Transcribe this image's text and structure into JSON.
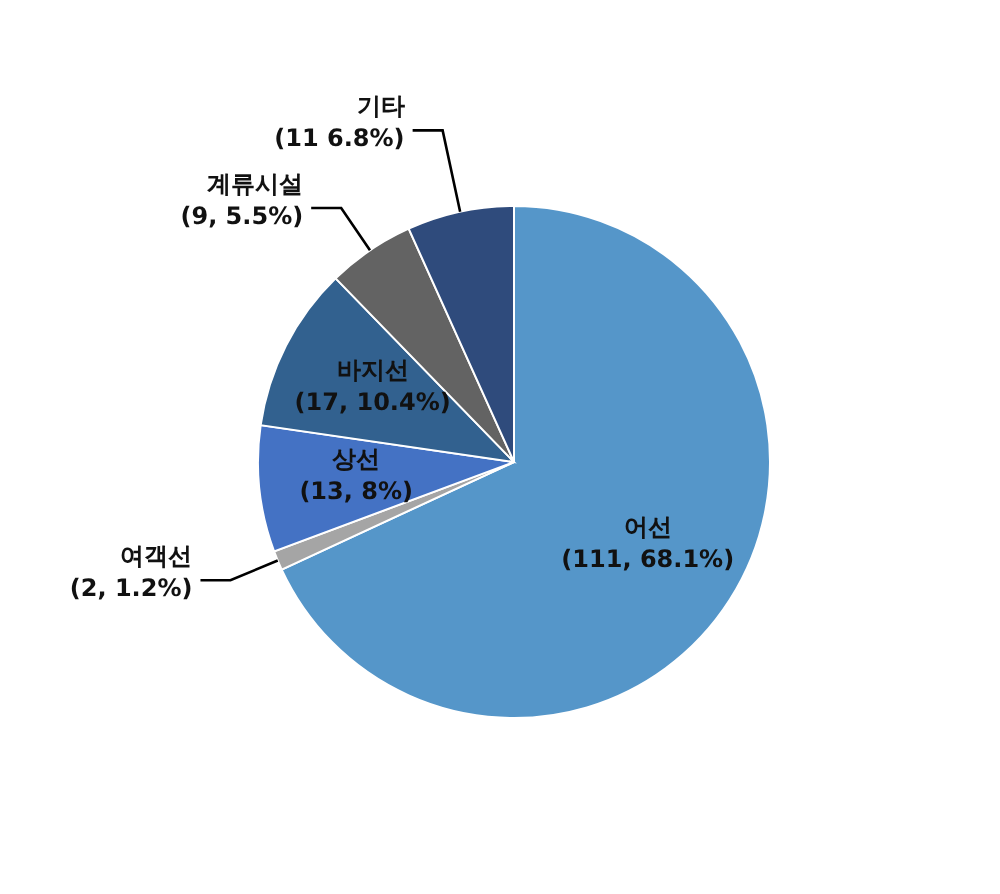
{
  "chart_data": {
    "type": "pie",
    "categories": [
      "어선",
      "여객선",
      "상선",
      "바지선",
      "계류시설",
      "기타"
    ],
    "values": [
      111,
      2,
      13,
      17,
      9,
      11
    ],
    "value_labels": [
      "(111, 68.1%)",
      "(2, 1.2%)",
      "(13, 8%)",
      "(17, 10.4%)",
      "(9, 5.5%)",
      "(11 6.8%)"
    ],
    "colors": [
      "#5596c9",
      "#a5a5a5",
      "#4472c4",
      "#32618f",
      "#636363",
      "#2f4b7c"
    ]
  }
}
